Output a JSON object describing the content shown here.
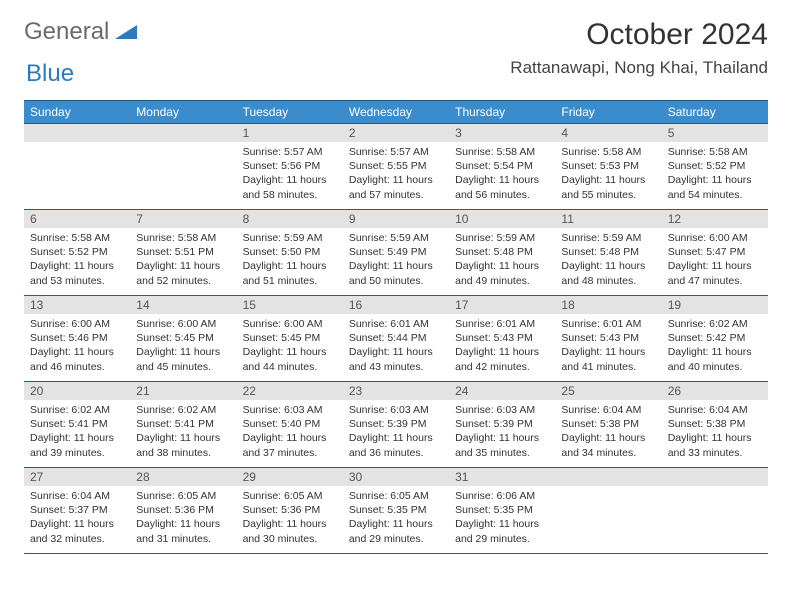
{
  "brand": {
    "part1": "General",
    "part2": "Blue"
  },
  "title": "October 2024",
  "location": "Rattanawapi, Nong Khai, Thailand",
  "colors": {
    "header_bg": "#3a8ccc",
    "header_border": "#235d88",
    "daynum_bg": "#e3e3e3",
    "text": "#333333",
    "logo_gray": "#6b6b6b",
    "logo_blue": "#2d7bbf"
  },
  "day_headers": [
    "Sunday",
    "Monday",
    "Tuesday",
    "Wednesday",
    "Thursday",
    "Friday",
    "Saturday"
  ],
  "weeks": [
    [
      {
        "empty": true
      },
      {
        "empty": true
      },
      {
        "day": "1",
        "sunrise": "5:57 AM",
        "sunset": "5:56 PM",
        "daylight": "11 hours and 58 minutes."
      },
      {
        "day": "2",
        "sunrise": "5:57 AM",
        "sunset": "5:55 PM",
        "daylight": "11 hours and 57 minutes."
      },
      {
        "day": "3",
        "sunrise": "5:58 AM",
        "sunset": "5:54 PM",
        "daylight": "11 hours and 56 minutes."
      },
      {
        "day": "4",
        "sunrise": "5:58 AM",
        "sunset": "5:53 PM",
        "daylight": "11 hours and 55 minutes."
      },
      {
        "day": "5",
        "sunrise": "5:58 AM",
        "sunset": "5:52 PM",
        "daylight": "11 hours and 54 minutes."
      }
    ],
    [
      {
        "day": "6",
        "sunrise": "5:58 AM",
        "sunset": "5:52 PM",
        "daylight": "11 hours and 53 minutes."
      },
      {
        "day": "7",
        "sunrise": "5:58 AM",
        "sunset": "5:51 PM",
        "daylight": "11 hours and 52 minutes."
      },
      {
        "day": "8",
        "sunrise": "5:59 AM",
        "sunset": "5:50 PM",
        "daylight": "11 hours and 51 minutes."
      },
      {
        "day": "9",
        "sunrise": "5:59 AM",
        "sunset": "5:49 PM",
        "daylight": "11 hours and 50 minutes."
      },
      {
        "day": "10",
        "sunrise": "5:59 AM",
        "sunset": "5:48 PM",
        "daylight": "11 hours and 49 minutes."
      },
      {
        "day": "11",
        "sunrise": "5:59 AM",
        "sunset": "5:48 PM",
        "daylight": "11 hours and 48 minutes."
      },
      {
        "day": "12",
        "sunrise": "6:00 AM",
        "sunset": "5:47 PM",
        "daylight": "11 hours and 47 minutes."
      }
    ],
    [
      {
        "day": "13",
        "sunrise": "6:00 AM",
        "sunset": "5:46 PM",
        "daylight": "11 hours and 46 minutes."
      },
      {
        "day": "14",
        "sunrise": "6:00 AM",
        "sunset": "5:45 PM",
        "daylight": "11 hours and 45 minutes."
      },
      {
        "day": "15",
        "sunrise": "6:00 AM",
        "sunset": "5:45 PM",
        "daylight": "11 hours and 44 minutes."
      },
      {
        "day": "16",
        "sunrise": "6:01 AM",
        "sunset": "5:44 PM",
        "daylight": "11 hours and 43 minutes."
      },
      {
        "day": "17",
        "sunrise": "6:01 AM",
        "sunset": "5:43 PM",
        "daylight": "11 hours and 42 minutes."
      },
      {
        "day": "18",
        "sunrise": "6:01 AM",
        "sunset": "5:43 PM",
        "daylight": "11 hours and 41 minutes."
      },
      {
        "day": "19",
        "sunrise": "6:02 AM",
        "sunset": "5:42 PM",
        "daylight": "11 hours and 40 minutes."
      }
    ],
    [
      {
        "day": "20",
        "sunrise": "6:02 AM",
        "sunset": "5:41 PM",
        "daylight": "11 hours and 39 minutes."
      },
      {
        "day": "21",
        "sunrise": "6:02 AM",
        "sunset": "5:41 PM",
        "daylight": "11 hours and 38 minutes."
      },
      {
        "day": "22",
        "sunrise": "6:03 AM",
        "sunset": "5:40 PM",
        "daylight": "11 hours and 37 minutes."
      },
      {
        "day": "23",
        "sunrise": "6:03 AM",
        "sunset": "5:39 PM",
        "daylight": "11 hours and 36 minutes."
      },
      {
        "day": "24",
        "sunrise": "6:03 AM",
        "sunset": "5:39 PM",
        "daylight": "11 hours and 35 minutes."
      },
      {
        "day": "25",
        "sunrise": "6:04 AM",
        "sunset": "5:38 PM",
        "daylight": "11 hours and 34 minutes."
      },
      {
        "day": "26",
        "sunrise": "6:04 AM",
        "sunset": "5:38 PM",
        "daylight": "11 hours and 33 minutes."
      }
    ],
    [
      {
        "day": "27",
        "sunrise": "6:04 AM",
        "sunset": "5:37 PM",
        "daylight": "11 hours and 32 minutes."
      },
      {
        "day": "28",
        "sunrise": "6:05 AM",
        "sunset": "5:36 PM",
        "daylight": "11 hours and 31 minutes."
      },
      {
        "day": "29",
        "sunrise": "6:05 AM",
        "sunset": "5:36 PM",
        "daylight": "11 hours and 30 minutes."
      },
      {
        "day": "30",
        "sunrise": "6:05 AM",
        "sunset": "5:35 PM",
        "daylight": "11 hours and 29 minutes."
      },
      {
        "day": "31",
        "sunrise": "6:06 AM",
        "sunset": "5:35 PM",
        "daylight": "11 hours and 29 minutes."
      },
      {
        "empty": true
      },
      {
        "empty": true
      }
    ]
  ],
  "labels": {
    "sunrise": "Sunrise:",
    "sunset": "Sunset:",
    "daylight": "Daylight:"
  }
}
